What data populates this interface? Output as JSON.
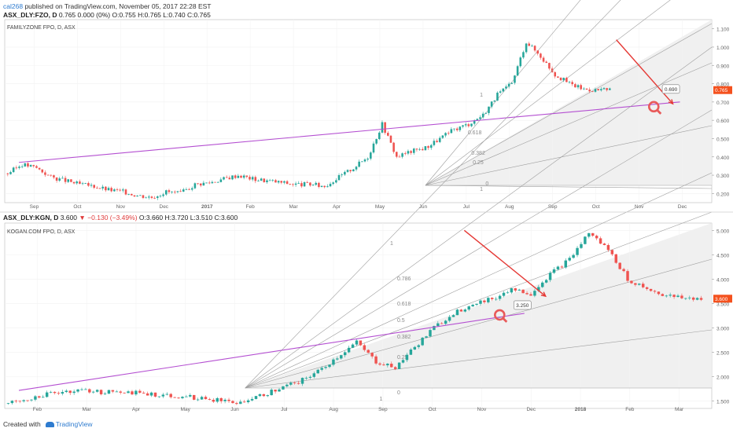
{
  "header": {
    "author": "cal268",
    "published": "published on TradingView.com, November 05, 2017 22:28 EST"
  },
  "footer": {
    "created_with": "Created with",
    "brand": "TradingView"
  },
  "colors": {
    "up": "#26a69a",
    "down": "#ef5350",
    "trend": "#e53935",
    "support": "#b44fd1",
    "fan": "#9e9e9e",
    "price_tag": "#f4511e",
    "axis": "#666666"
  },
  "chart_data": [
    {
      "type": "candlestick",
      "symbol": "ASX_DLY:FZO",
      "interval": "D",
      "ohlc_line": {
        "symbol": "ASX_DLY:FZO,",
        "interval": "D",
        "close_text": "0.765",
        "change_text": "0.000 (0%)",
        "o": "O:0.755",
        "h": "H:0.765",
        "l": "L:0.740",
        "c": "C:0.765"
      },
      "title": "FAMILYZONE FPO, D, ASX",
      "x_ticks": [
        "Sep",
        "Oct",
        "Nov",
        "Dec",
        "2017",
        "Feb",
        "Mar",
        "Apr",
        "May",
        "Jun",
        "Jul",
        "Aug",
        "Sep",
        "Oct",
        "Nov",
        "Dec"
      ],
      "y_ticks": [
        "1.100",
        "1.000",
        "0.900",
        "0.800",
        "0.700",
        "0.600",
        "0.500",
        "0.400",
        "0.300",
        "0.200"
      ],
      "ylim": [
        0.15,
        1.15
      ],
      "last_price": "0.765",
      "callout": "0.690",
      "fan_labels": [
        "1",
        "0.618",
        "0.382",
        "0.25",
        "0",
        "1"
      ],
      "price_series": [
        0.31,
        0.36,
        0.34,
        0.29,
        0.27,
        0.25,
        0.24,
        0.22,
        0.21,
        0.19,
        0.18,
        0.21,
        0.2,
        0.25,
        0.26,
        0.28,
        0.3,
        0.28,
        0.27,
        0.26,
        0.25,
        0.25,
        0.24,
        0.29,
        0.34,
        0.4,
        0.58,
        0.4,
        0.43,
        0.45,
        0.5,
        0.55,
        0.58,
        0.63,
        0.74,
        0.8,
        1.03,
        0.95,
        0.85,
        0.8,
        0.77,
        0.765
      ],
      "drawings": {
        "support_start": 0.37,
        "support_end": 0.7,
        "trend_start": 1.04,
        "trend_end": 0.69
      }
    },
    {
      "type": "candlestick",
      "symbol": "ASX_DLY:KGN",
      "interval": "D",
      "ohlc_line": {
        "symbol": "ASX_DLY:KGN,",
        "interval": "D",
        "close_text": "3.600",
        "change_text": "▼ −0.130 (−3.49%)",
        "o": "O:3.660",
        "h": "H:3.720",
        "l": "L:3.510",
        "c": "C:3.600"
      },
      "title": "KOGAN.COM FPO, D, ASX",
      "x_ticks": [
        "Feb",
        "Mar",
        "Apr",
        "May",
        "Jun",
        "Jul",
        "Aug",
        "Sep",
        "Oct",
        "Nov",
        "Dec",
        "2018",
        "Feb",
        "Mar"
      ],
      "y_ticks": [
        "5.000",
        "4.500",
        "4.000",
        "3.500",
        "3.000",
        "2.500",
        "2.000",
        "1.500"
      ],
      "ylim": [
        1.35,
        5.15
      ],
      "last_price": "3.600",
      "callout": "3.250",
      "fan_labels": [
        "1",
        "0.786",
        "0.618",
        "0.5",
        "0.382",
        "0.25",
        "0",
        "1"
      ],
      "price_series": [
        1.45,
        1.55,
        1.65,
        1.7,
        1.72,
        1.68,
        1.7,
        1.65,
        1.62,
        1.6,
        1.55,
        1.52,
        1.48,
        1.6,
        1.75,
        1.9,
        2.1,
        2.4,
        2.7,
        2.3,
        2.2,
        2.6,
        3.0,
        3.3,
        3.5,
        3.6,
        3.8,
        3.7,
        4.1,
        4.4,
        4.95,
        4.6,
        4.0,
        3.8,
        3.65,
        3.6
      ],
      "drawings": {
        "support_start": 1.72,
        "support_end": 3.3,
        "trend_start": 5.0,
        "trend_end": 3.65
      }
    }
  ]
}
